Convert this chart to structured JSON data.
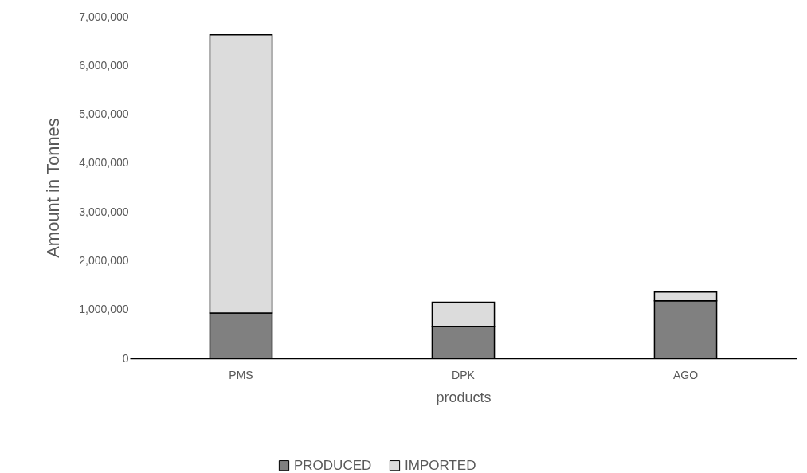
{
  "chart_data": {
    "type": "bar",
    "stacked": true,
    "xlabel": "products",
    "ylabel": "Amount  in  Tonnes",
    "categories": [
      "PMS",
      "DPK",
      "AGO"
    ],
    "series": [
      {
        "name": "PRODUCED",
        "color": "#808080",
        "values": [
          930000,
          650000,
          1180000
        ]
      },
      {
        "name": "IMPORTED",
        "color": "#dcdcdc",
        "values": [
          5700000,
          500000,
          180000
        ]
      }
    ],
    "ylim": [
      0,
      7000000
    ],
    "yticks": [
      0,
      {
        "value": 1000000,
        "label": "1,000,000"
      },
      {
        "value": 2000000,
        "label": "2,000,000"
      },
      {
        "value": 3000000,
        "label": "3,000,000"
      },
      {
        "value": 4000000,
        "label": "4,000,000"
      },
      {
        "value": 5000000,
        "label": "5,000,000"
      },
      {
        "value": 6000000,
        "label": "6,000,000"
      },
      {
        "value": 7000000,
        "label": "7,000,000"
      }
    ],
    "grid": false,
    "legend": "bottom"
  }
}
